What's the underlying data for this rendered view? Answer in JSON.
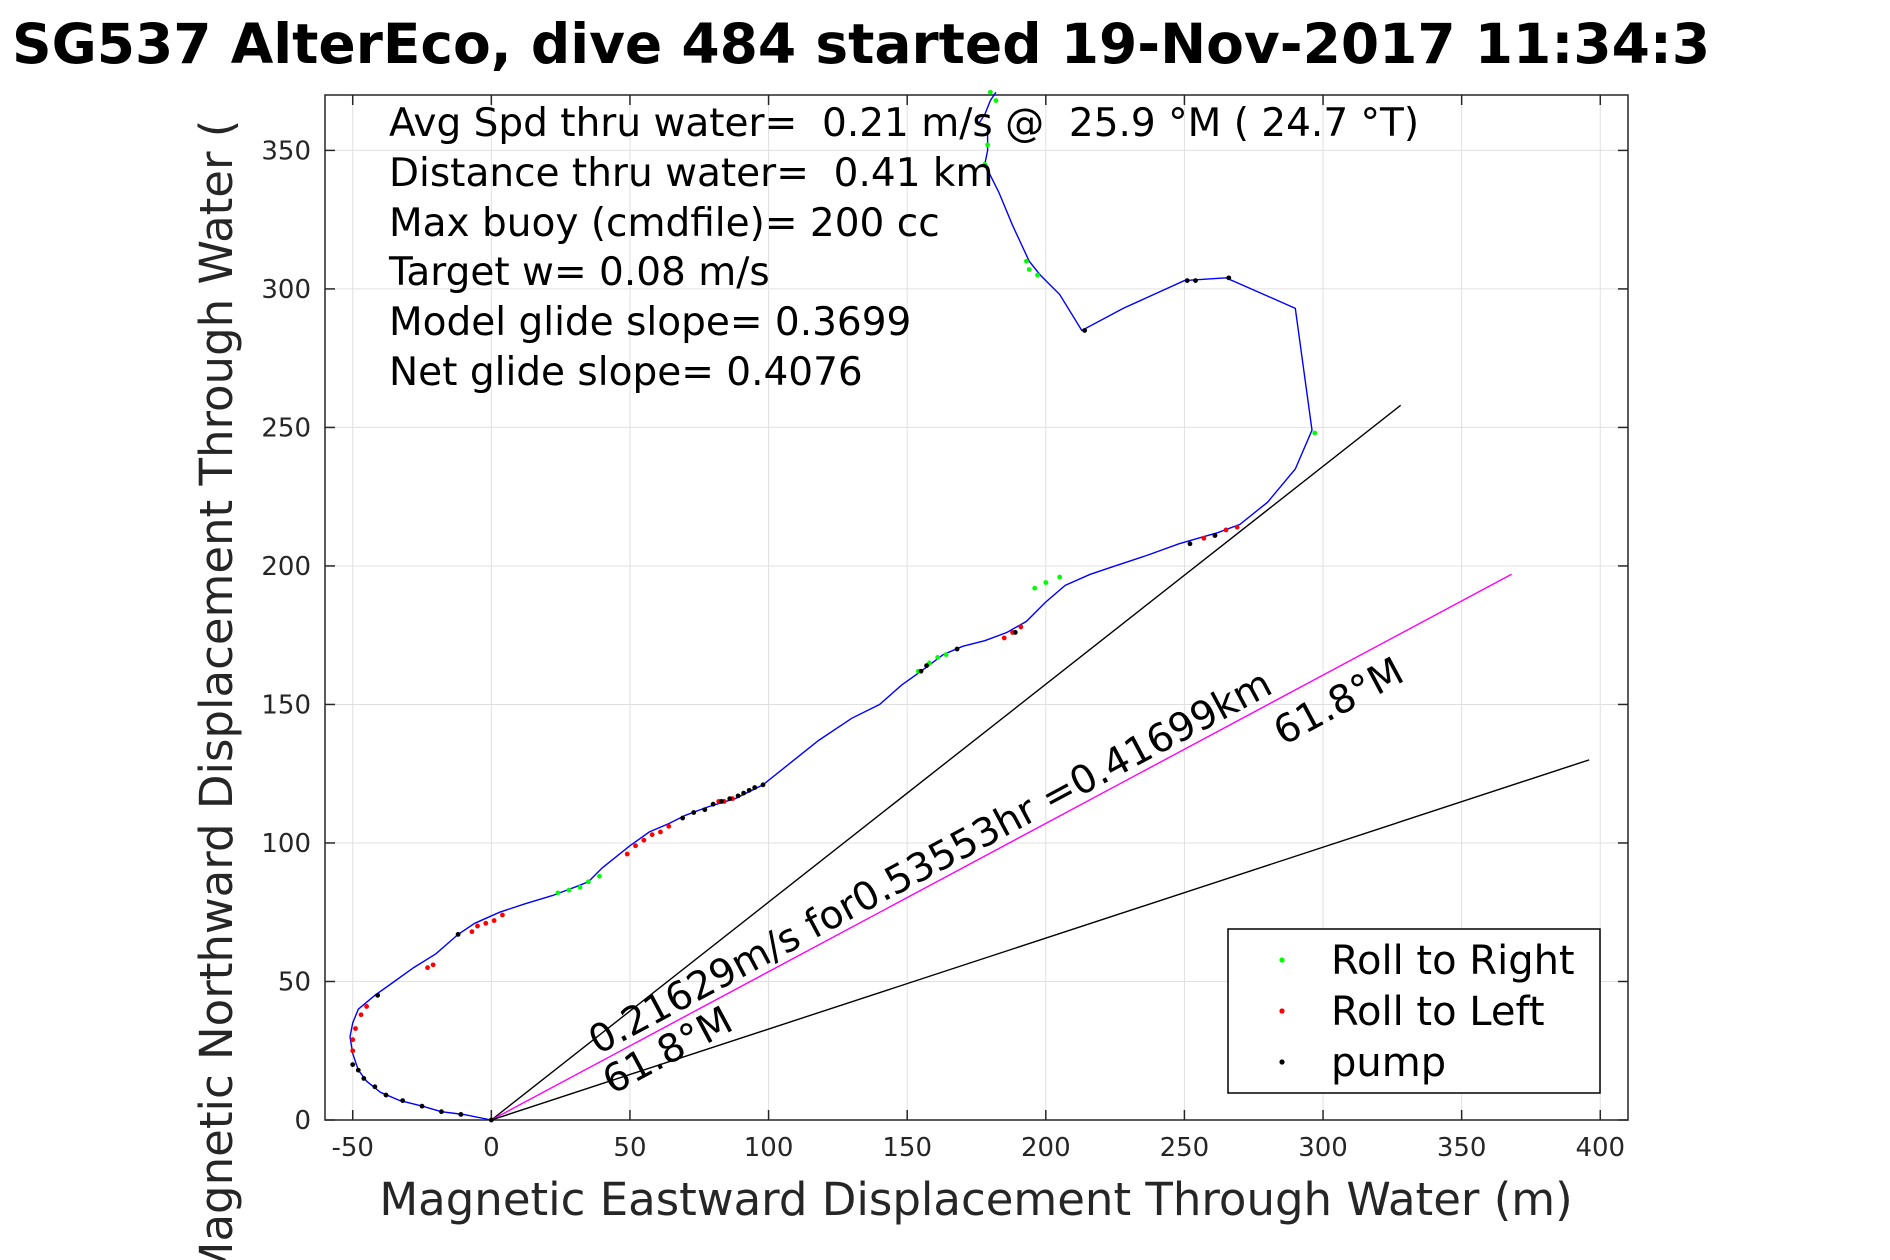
{
  "colors": {
    "track": "#0000ff",
    "roll_right": "#00ff00",
    "roll_left": "#ff0000",
    "pump": "#000000",
    "current_line": "#ff00ff",
    "axes": "#262626",
    "grid": "#e0e0e0"
  },
  "title": "SG537 AlterEco, dive 484 started 19-Nov-2017 11:34:3",
  "info_lines": [
    "Avg Spd thru water=  0.21 m/s @  25.9 °M ( 24.7 °T)",
    "Distance thru water=  0.41 km",
    "Max buoy (cmdfile)= 200 cc",
    "Target w= 0.08 m/s",
    "Model glide slope= 0.3699",
    "Net glide slope= 0.4076"
  ],
  "annotations": {
    "main": "0.21629m/s for0.53553hr =0.41699km",
    "heading_upper": "61.8°M",
    "heading_lower": "61.8°M"
  },
  "chart_data": {
    "type": "line",
    "title": "SG537 AlterEco, dive 484 started 19-Nov-2017 11:34:3",
    "xlabel": "Magnetic Eastward Displacement Through Water (m)",
    "ylabel": "Magnetic Northward Displacement Through Water (",
    "xlim": [
      -60,
      410
    ],
    "ylim": [
      0,
      370
    ],
    "x_ticks": [
      -50,
      0,
      50,
      100,
      150,
      200,
      250,
      300,
      350,
      400
    ],
    "y_ticks": [
      0,
      50,
      100,
      150,
      200,
      250,
      300,
      350
    ],
    "grid": true,
    "legend": {
      "placement": "bottom-right",
      "entries": [
        "Roll to Right",
        "Roll to Left",
        "pump"
      ]
    },
    "track": [
      [
        0,
        0
      ],
      [
        -10,
        2
      ],
      [
        -18,
        3
      ],
      [
        -25,
        5
      ],
      [
        -33,
        7
      ],
      [
        -40,
        10
      ],
      [
        -45,
        14
      ],
      [
        -48,
        18
      ],
      [
        -50,
        24
      ],
      [
        -51,
        30
      ],
      [
        -50,
        35
      ],
      [
        -48,
        40
      ],
      [
        -42,
        45
      ],
      [
        -35,
        50
      ],
      [
        -28,
        55
      ],
      [
        -20,
        60
      ],
      [
        -12,
        67
      ],
      [
        -6,
        71
      ],
      [
        3,
        75
      ],
      [
        12,
        78
      ],
      [
        22,
        81
      ],
      [
        30,
        84
      ],
      [
        35,
        86
      ],
      [
        40,
        91
      ],
      [
        45,
        95
      ],
      [
        50,
        99
      ],
      [
        57,
        104
      ],
      [
        64,
        107
      ],
      [
        70,
        110
      ],
      [
        78,
        113
      ],
      [
        88,
        116
      ],
      [
        98,
        121
      ],
      [
        108,
        129
      ],
      [
        118,
        137
      ],
      [
        130,
        145
      ],
      [
        140,
        150
      ],
      [
        148,
        157
      ],
      [
        155,
        162
      ],
      [
        163,
        168
      ],
      [
        170,
        171
      ],
      [
        178,
        173
      ],
      [
        186,
        176
      ],
      [
        193,
        180
      ],
      [
        200,
        187
      ],
      [
        207,
        193
      ],
      [
        216,
        197
      ],
      [
        225,
        200
      ],
      [
        237,
        204
      ],
      [
        248,
        208
      ],
      [
        255,
        210
      ],
      [
        262,
        212
      ],
      [
        270,
        215
      ],
      [
        280,
        223
      ],
      [
        290,
        235
      ],
      [
        296,
        249
      ],
      [
        290,
        293
      ],
      [
        265,
        304
      ],
      [
        250,
        303
      ],
      [
        228,
        293
      ],
      [
        213,
        285
      ],
      [
        205,
        298
      ],
      [
        198,
        305
      ],
      [
        194,
        310
      ],
      [
        188,
        323
      ],
      [
        183,
        335
      ],
      [
        178,
        345
      ],
      [
        179,
        350
      ],
      [
        179,
        358
      ],
      [
        176,
        360
      ],
      [
        178,
        363
      ],
      [
        180,
        368
      ],
      [
        182,
        371
      ]
    ],
    "series": [
      {
        "name": "Roll to Right",
        "points": [
          [
            24,
            82
          ],
          [
            28,
            83
          ],
          [
            32,
            84
          ],
          [
            35,
            86
          ],
          [
            39,
            88
          ],
          [
            154,
            162
          ],
          [
            158,
            165
          ],
          [
            161,
            167
          ],
          [
            164,
            168
          ],
          [
            196,
            192
          ],
          [
            200,
            194
          ],
          [
            205,
            196
          ],
          [
            297,
            248
          ],
          [
            193,
            310
          ],
          [
            197,
            305
          ],
          [
            194,
            307
          ],
          [
            178,
            345
          ],
          [
            179,
            352
          ],
          [
            182,
            368
          ],
          [
            180,
            371
          ]
        ]
      },
      {
        "name": "Roll to Left",
        "points": [
          [
            -50,
            25
          ],
          [
            -50,
            29
          ],
          [
            -49,
            33
          ],
          [
            -47,
            38
          ],
          [
            -45,
            41
          ],
          [
            -23,
            55
          ],
          [
            -21,
            56
          ],
          [
            -7,
            68
          ],
          [
            -5,
            70
          ],
          [
            -2,
            71
          ],
          [
            1,
            72
          ],
          [
            4,
            74
          ],
          [
            49,
            96
          ],
          [
            52,
            99
          ],
          [
            55,
            101
          ],
          [
            58,
            103
          ],
          [
            61,
            104
          ],
          [
            64,
            106
          ],
          [
            82,
            115
          ],
          [
            84,
            115
          ],
          [
            87,
            116
          ],
          [
            185,
            174
          ],
          [
            188,
            176
          ],
          [
            191,
            178
          ],
          [
            257,
            210
          ],
          [
            261,
            211
          ],
          [
            265,
            213
          ],
          [
            269,
            214
          ]
        ]
      },
      {
        "name": "pump",
        "points": [
          [
            0,
            0
          ],
          [
            -11,
            2
          ],
          [
            -18,
            3
          ],
          [
            -25,
            5
          ],
          [
            -32,
            7
          ],
          [
            -38,
            9
          ],
          [
            -42,
            12
          ],
          [
            -46,
            15
          ],
          [
            -48,
            18
          ],
          [
            -50,
            20
          ],
          [
            -41,
            45
          ],
          [
            -12,
            67
          ],
          [
            69,
            109
          ],
          [
            73,
            111
          ],
          [
            77,
            112
          ],
          [
            80,
            114
          ],
          [
            83,
            115
          ],
          [
            86,
            116
          ],
          [
            89,
            117
          ],
          [
            91,
            118
          ],
          [
            93,
            119
          ],
          [
            95,
            120
          ],
          [
            98,
            121
          ],
          [
            155,
            162
          ],
          [
            157,
            164
          ],
          [
            168,
            170
          ],
          [
            189,
            176
          ],
          [
            252,
            208
          ],
          [
            261,
            211
          ],
          [
            214,
            285
          ],
          [
            251,
            303
          ],
          [
            254,
            303
          ],
          [
            266,
            304
          ]
        ]
      }
    ],
    "lines": [
      {
        "name": "reference-upper",
        "from": [
          0,
          0
        ],
        "to": [
          328,
          258
        ]
      },
      {
        "name": "current-vector",
        "from": [
          0,
          0
        ],
        "to": [
          368,
          197
        ]
      },
      {
        "name": "reference-lower",
        "from": [
          0,
          0
        ],
        "to": [
          396,
          130
        ]
      }
    ]
  }
}
